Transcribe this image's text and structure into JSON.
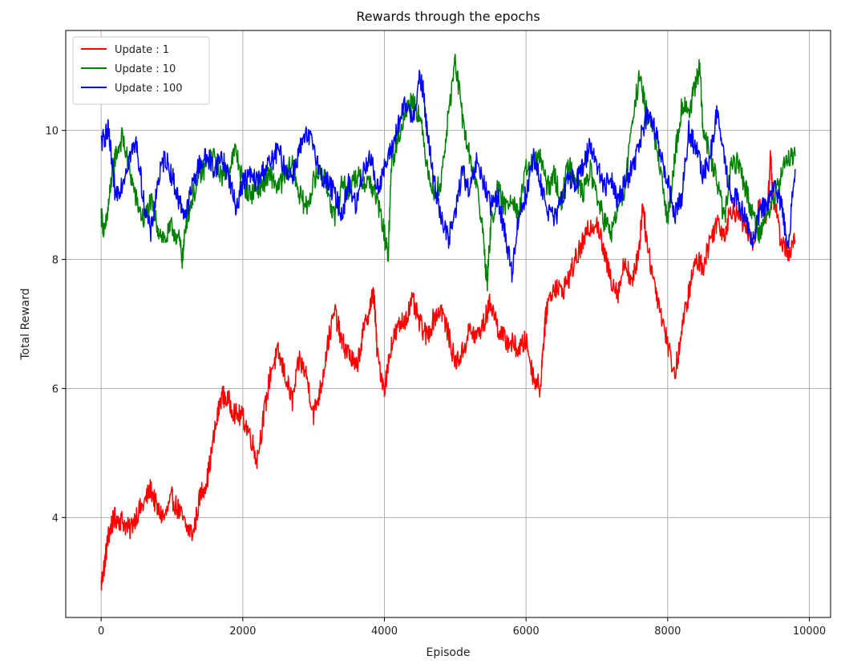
{
  "chart_data": {
    "type": "line",
    "title": "Rewards through the epochs",
    "xlabel": "Episode",
    "ylabel": "Total Reward",
    "xlim": [
      -500,
      10300
    ],
    "ylim": [
      2.45,
      11.55
    ],
    "xticks": [
      0,
      2000,
      4000,
      6000,
      8000,
      10000
    ],
    "yticks": [
      4,
      6,
      8,
      10
    ],
    "grid": true,
    "legend_position": "upper-left",
    "series": [
      {
        "name": "Update : 1",
        "color": "#ff0000",
        "x": [
          0,
          50,
          100,
          150,
          200,
          300,
          400,
          500,
          600,
          700,
          800,
          900,
          1000,
          1100,
          1200,
          1300,
          1400,
          1500,
          1600,
          1700,
          1800,
          1900,
          2000,
          2100,
          2200,
          2300,
          2400,
          2500,
          2600,
          2700,
          2800,
          2900,
          3000,
          3100,
          3200,
          3300,
          3400,
          3500,
          3600,
          3700,
          3800,
          3850,
          3900,
          4000,
          4100,
          4200,
          4300,
          4400,
          4500,
          4600,
          4700,
          4800,
          4900,
          5000,
          5100,
          5200,
          5300,
          5400,
          5500,
          5600,
          5700,
          5800,
          5900,
          6000,
          6100,
          6200,
          6250,
          6300,
          6400,
          6500,
          6600,
          6700,
          6800,
          6900,
          7000,
          7100,
          7200,
          7300,
          7400,
          7500,
          7600,
          7650,
          7700,
          7800,
          7900,
          8000,
          8100,
          8200,
          8300,
          8400,
          8500,
          8600,
          8700,
          8800,
          8900,
          9000,
          9100,
          9200,
          9300,
          9400,
          9450,
          9500,
          9600,
          9700,
          9800
        ],
        "values": [
          2.95,
          3.3,
          3.7,
          3.9,
          4.0,
          3.95,
          3.8,
          4.05,
          4.2,
          4.45,
          4.1,
          4.0,
          4.3,
          4.1,
          3.85,
          3.75,
          4.35,
          4.6,
          5.3,
          5.9,
          5.8,
          5.6,
          5.55,
          5.3,
          4.9,
          5.6,
          6.3,
          6.55,
          6.2,
          5.8,
          6.45,
          6.2,
          5.6,
          6.0,
          6.7,
          7.2,
          6.7,
          6.55,
          6.3,
          6.85,
          7.3,
          7.5,
          6.5,
          6.0,
          6.7,
          6.95,
          7.1,
          7.35,
          7.0,
          6.8,
          7.1,
          7.25,
          6.85,
          6.4,
          6.55,
          6.9,
          6.8,
          7.0,
          7.35,
          6.95,
          6.75,
          6.7,
          6.6,
          6.75,
          6.2,
          6.0,
          6.8,
          7.3,
          7.6,
          7.5,
          7.7,
          8.0,
          8.25,
          8.5,
          8.6,
          8.1,
          7.7,
          7.5,
          8.0,
          7.6,
          8.2,
          8.9,
          8.3,
          7.7,
          7.2,
          6.7,
          6.2,
          6.9,
          7.5,
          8.0,
          7.9,
          8.3,
          8.6,
          8.4,
          8.8,
          8.7,
          8.5,
          8.2,
          8.9,
          8.6,
          9.6,
          8.9,
          8.3,
          8.1,
          8.3
        ]
      },
      {
        "name": "Update : 10",
        "color": "#008000",
        "x": [
          0,
          50,
          100,
          150,
          200,
          300,
          400,
          500,
          600,
          700,
          800,
          900,
          1000,
          1100,
          1150,
          1200,
          1300,
          1400,
          1500,
          1600,
          1700,
          1800,
          1900,
          2000,
          2100,
          2200,
          2300,
          2400,
          2500,
          2600,
          2700,
          2800,
          2900,
          3000,
          3100,
          3200,
          3300,
          3400,
          3500,
          3600,
          3700,
          3800,
          3900,
          4000,
          4050,
          4100,
          4200,
          4300,
          4400,
          4500,
          4600,
          4700,
          4800,
          4900,
          5000,
          5100,
          5200,
          5300,
          5400,
          5450,
          5500,
          5600,
          5700,
          5800,
          5900,
          6000,
          6100,
          6200,
          6300,
          6400,
          6500,
          6600,
          6700,
          6800,
          6900,
          7000,
          7100,
          7200,
          7300,
          7400,
          7500,
          7600,
          7700,
          7800,
          7900,
          8000,
          8100,
          8200,
          8300,
          8400,
          8450,
          8500,
          8600,
          8700,
          8800,
          8900,
          9000,
          9100,
          9200,
          9300,
          9400,
          9500,
          9600,
          9700,
          9800
        ],
        "values": [
          8.7,
          8.4,
          8.8,
          9.3,
          9.6,
          9.9,
          9.4,
          8.9,
          8.6,
          8.9,
          8.5,
          8.3,
          8.5,
          8.3,
          8.0,
          8.6,
          9.0,
          9.3,
          9.5,
          9.6,
          9.3,
          9.4,
          9.7,
          9.2,
          9.0,
          9.1,
          9.2,
          9.3,
          9.1,
          9.3,
          9.5,
          9.0,
          8.8,
          9.2,
          9.4,
          9.1,
          8.6,
          9.2,
          9.1,
          9.3,
          9.2,
          9.2,
          8.9,
          8.4,
          8.0,
          9.5,
          9.9,
          10.3,
          10.5,
          10.2,
          9.5,
          9.0,
          9.2,
          10.2,
          11.1,
          10.2,
          9.6,
          9.2,
          8.3,
          7.6,
          8.5,
          9.1,
          8.8,
          9.0,
          8.7,
          9.4,
          9.5,
          9.6,
          9.1,
          9.3,
          8.9,
          9.5,
          9.3,
          9.0,
          9.4,
          9.0,
          8.6,
          8.4,
          8.8,
          9.1,
          10.2,
          10.8,
          10.3,
          10.0,
          9.3,
          8.6,
          9.6,
          10.4,
          10.3,
          10.7,
          11.0,
          10.0,
          9.6,
          9.2,
          8.6,
          9.5,
          9.5,
          9.1,
          8.7,
          8.4,
          8.7,
          8.9,
          9.3,
          9.6,
          9.6
        ]
      },
      {
        "name": "Update : 100",
        "color": "#0000ff",
        "x": [
          0,
          50,
          100,
          150,
          200,
          300,
          400,
          500,
          600,
          700,
          800,
          900,
          1000,
          1100,
          1200,
          1300,
          1400,
          1500,
          1600,
          1700,
          1800,
          1900,
          2000,
          2100,
          2200,
          2300,
          2400,
          2500,
          2600,
          2700,
          2800,
          2900,
          3000,
          3100,
          3200,
          3300,
          3400,
          3500,
          3600,
          3700,
          3800,
          3900,
          4000,
          4100,
          4200,
          4300,
          4400,
          4500,
          4550,
          4600,
          4700,
          4800,
          4900,
          5000,
          5100,
          5200,
          5300,
          5400,
          5500,
          5600,
          5700,
          5800,
          5900,
          6000,
          6100,
          6200,
          6300,
          6400,
          6500,
          6600,
          6700,
          6800,
          6900,
          7000,
          7100,
          7200,
          7300,
          7400,
          7500,
          7600,
          7700,
          7800,
          7900,
          8000,
          8100,
          8200,
          8300,
          8400,
          8500,
          8600,
          8700,
          8800,
          8900,
          9000,
          9100,
          9200,
          9300,
          9400,
          9500,
          9600,
          9700,
          9800
        ],
        "values": [
          9.8,
          9.9,
          10.0,
          9.5,
          9.0,
          9.2,
          9.6,
          9.8,
          8.9,
          8.4,
          9.2,
          9.6,
          9.3,
          8.9,
          8.7,
          9.2,
          9.5,
          9.6,
          9.4,
          9.6,
          9.3,
          8.8,
          9.2,
          9.3,
          9.2,
          9.4,
          9.5,
          9.7,
          9.4,
          9.3,
          9.7,
          9.9,
          9.8,
          9.3,
          9.2,
          9.0,
          8.7,
          9.2,
          8.8,
          9.4,
          9.6,
          9.1,
          9.4,
          9.7,
          10.1,
          10.4,
          10.2,
          10.8,
          10.6,
          10.0,
          9.2,
          8.7,
          8.3,
          8.7,
          9.4,
          9.0,
          9.5,
          9.2,
          8.8,
          9.0,
          8.4,
          7.8,
          8.7,
          9.0,
          9.6,
          9.2,
          8.8,
          8.6,
          8.9,
          9.3,
          9.2,
          9.4,
          9.8,
          9.5,
          9.1,
          9.3,
          8.9,
          9.2,
          9.4,
          9.8,
          10.2,
          10.1,
          9.6,
          9.2,
          8.7,
          9.0,
          10.0,
          9.7,
          9.3,
          9.6,
          10.3,
          9.5,
          9.0,
          8.9,
          8.6,
          8.3,
          8.7,
          8.9,
          9.1,
          8.9,
          8.2,
          9.4
        ]
      }
    ]
  }
}
